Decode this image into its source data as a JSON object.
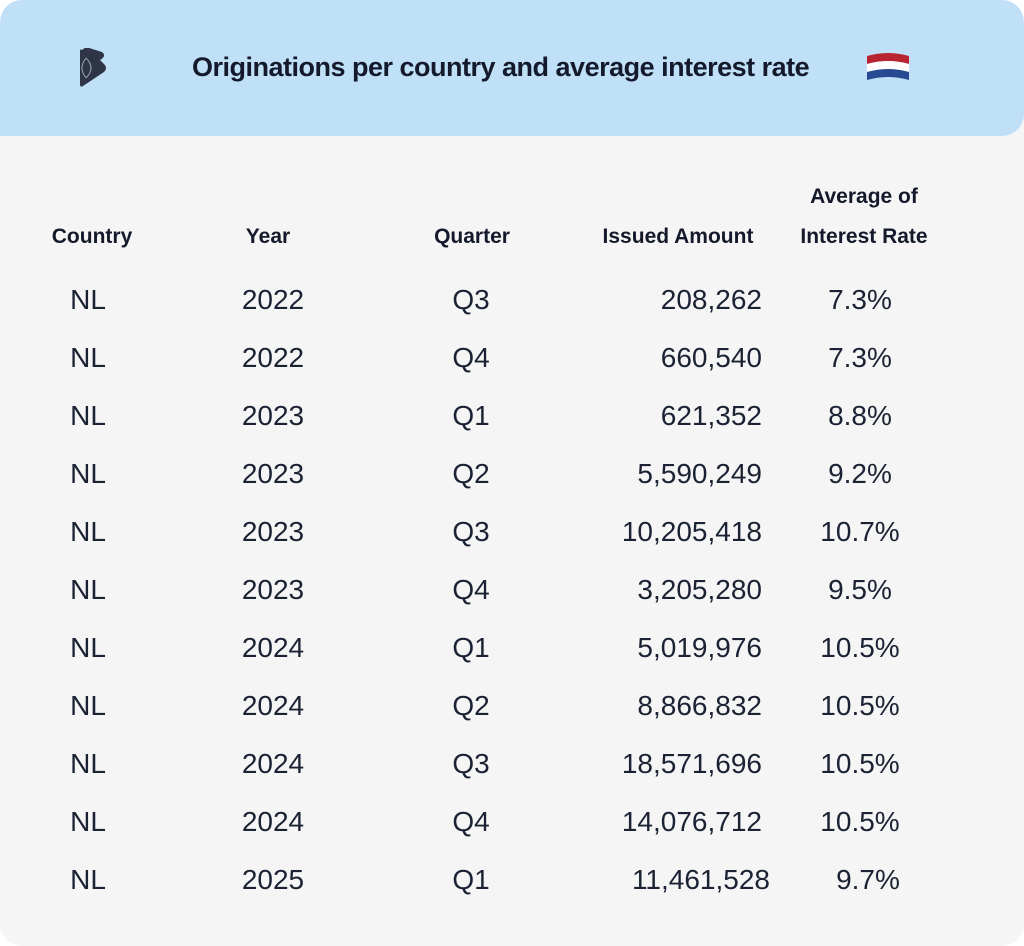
{
  "header": {
    "title": "Originations per country and average interest rate",
    "logo": "brand-logo",
    "flag": "netherlands-flag-icon"
  },
  "table": {
    "columns": [
      "Country",
      "Year",
      "Quarter",
      "Issued Amount",
      "Average of",
      "Interest Rate"
    ],
    "rows": [
      [
        "NL",
        "2022",
        "Q3",
        "208,262",
        "7.3%"
      ],
      [
        "NL",
        "2022",
        "Q4",
        "660,540",
        "7.3%"
      ],
      [
        "NL",
        "2023",
        "Q1",
        "621,352",
        "8.8%"
      ],
      [
        "NL",
        "2023",
        "Q2",
        "5,590,249",
        "9.2%"
      ],
      [
        "NL",
        "2023",
        "Q3",
        "10,205,418",
        "10.7%"
      ],
      [
        "NL",
        "2023",
        "Q4",
        "3,205,280",
        "9.5%"
      ],
      [
        "NL",
        "2024",
        "Q1",
        "5,019,976",
        "10.5%"
      ],
      [
        "NL",
        "2024",
        "Q2",
        "8,866,832",
        "10.5%"
      ],
      [
        "NL",
        "2024",
        "Q3",
        "18,571,696",
        "10.5%"
      ],
      [
        "NL",
        "2024",
        "Q4",
        "14,076,712",
        "10.5%"
      ],
      [
        "NL",
        "2025",
        "Q1",
        "11,461,528",
        "9.7%"
      ]
    ]
  }
}
